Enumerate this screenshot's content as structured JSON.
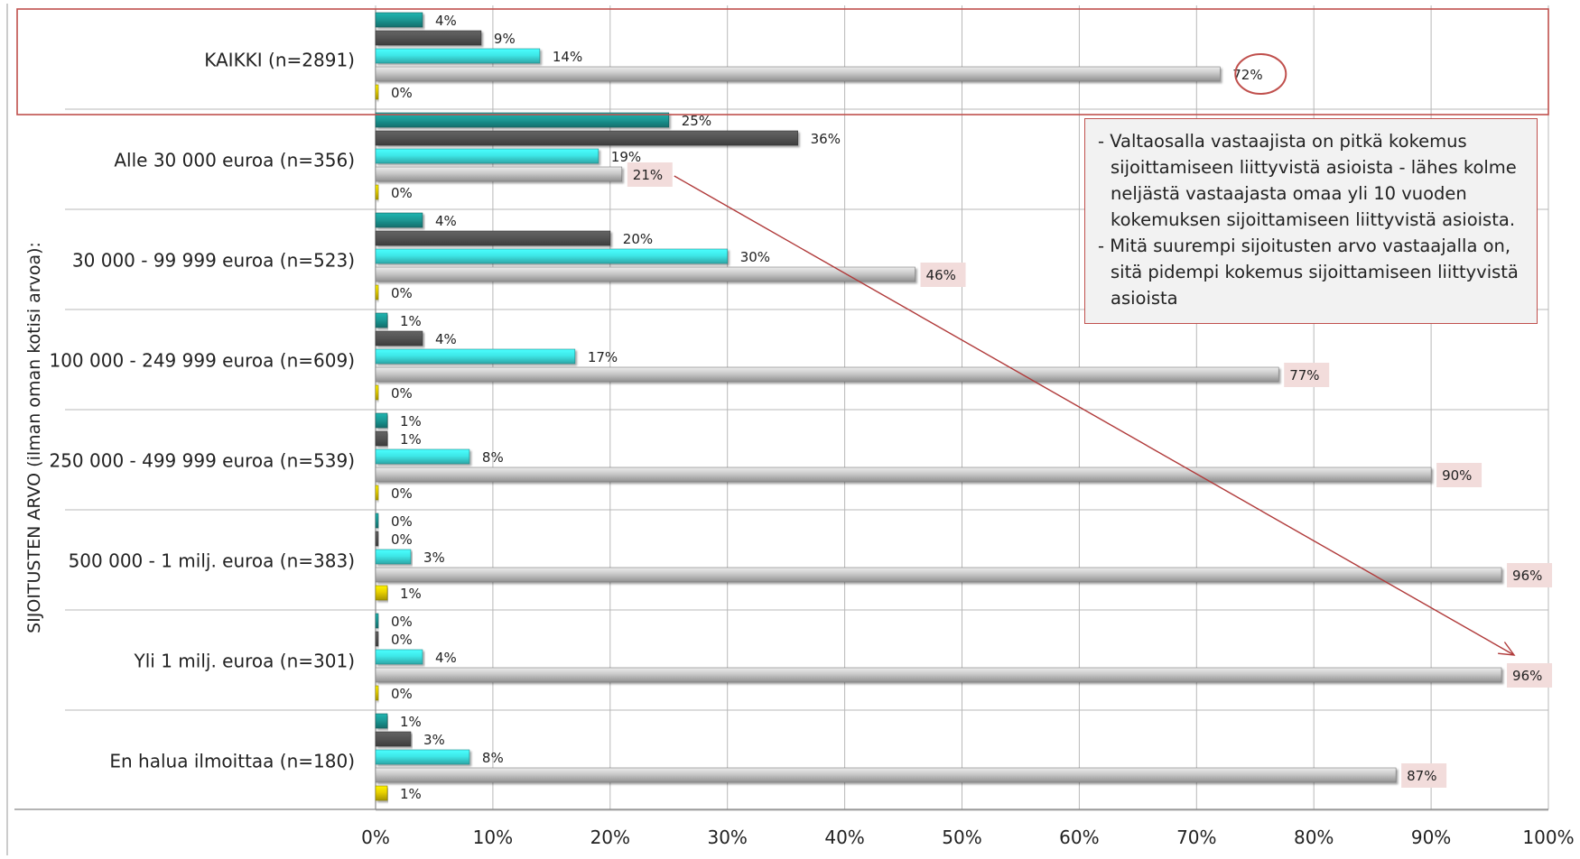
{
  "chart_data": {
    "type": "bar",
    "orientation": "horizontal",
    "ylabel": "SIJOITUSTEN ARVO (ilman oman kotisi arvoa):",
    "xlabel": "",
    "xlim": [
      0,
      100
    ],
    "x_ticks": [
      "0%",
      "10%",
      "20%",
      "30%",
      "40%",
      "50%",
      "60%",
      "70%",
      "80%",
      "90%",
      "100%"
    ],
    "grid": true,
    "legend": "none",
    "categories": [
      "KAIKKI (n=2891)",
      "Alle 30 000 euroa (n=356)",
      "30 000 - 99 999 euroa (n=523)",
      "100 000 - 249 999 euroa (n=609)",
      "250 000 - 499 999 euroa (n=539)",
      "500 000 - 1 milj. euroa (n=383)",
      "Yli 1 milj. euroa (n=301)",
      "En halua ilmoittaa (n=180)"
    ],
    "series": [
      {
        "color": "#1c9a96",
        "values": [
          4,
          25,
          4,
          1,
          1,
          0,
          0,
          1
        ],
        "labels": [
          "4%",
          "25%",
          "4%",
          "1%",
          "1%",
          "0%",
          "0%",
          "1%"
        ]
      },
      {
        "color": "#555555",
        "values": [
          9,
          36,
          20,
          4,
          1,
          0,
          0,
          3
        ],
        "labels": [
          "9%",
          "36%",
          "20%",
          "4%",
          "1%",
          "0%",
          "0%",
          "3%"
        ]
      },
      {
        "color": "#3ee8e8",
        "values": [
          14,
          19,
          30,
          17,
          8,
          3,
          4,
          8
        ],
        "labels": [
          "14%",
          "19%",
          "30%",
          "17%",
          "8%",
          "3%",
          "4%",
          "8%"
        ]
      },
      {
        "color": "#c8c8c8",
        "values": [
          72,
          21,
          46,
          77,
          90,
          96,
          96,
          87
        ],
        "labels": [
          "72%",
          "21%",
          "46%",
          "77%",
          "90%",
          "96%",
          "96%",
          "87%"
        ]
      },
      {
        "color": "#e8d000",
        "values": [
          0,
          0,
          0,
          0,
          0,
          1,
          0,
          1
        ],
        "labels": [
          "0%",
          "0%",
          "0%",
          "0%",
          "0%",
          "1%",
          "0%",
          "1%"
        ]
      }
    ],
    "annotations": {
      "highlighted_category": "KAIKKI (n=2891)",
      "circled_label": "72%",
      "trend_arrow": {
        "from_category": "Alle 30 000 euroa (n=356)",
        "to_category": "Yli 1 milj. euroa (n=301)"
      },
      "note_lines": [
        "- Valtaosalla vastaajista on pitkä kokemus sijoittamiseen liittyvistä asioista - lähes kolme neljästä vastaajasta omaa yli 10 vuoden kokemuksen sijoittamiseen liittyvistä asioista.",
        "- Mitä suurempi sijoitusten arvo vastaajalla on, sitä pidempi kokemus sijoittamiseen liittyvistä asioista"
      ]
    },
    "colors": {
      "highlight_border": "#c0504d",
      "label_background": "#f2dcdb",
      "arrow": "#b03a3a"
    }
  }
}
